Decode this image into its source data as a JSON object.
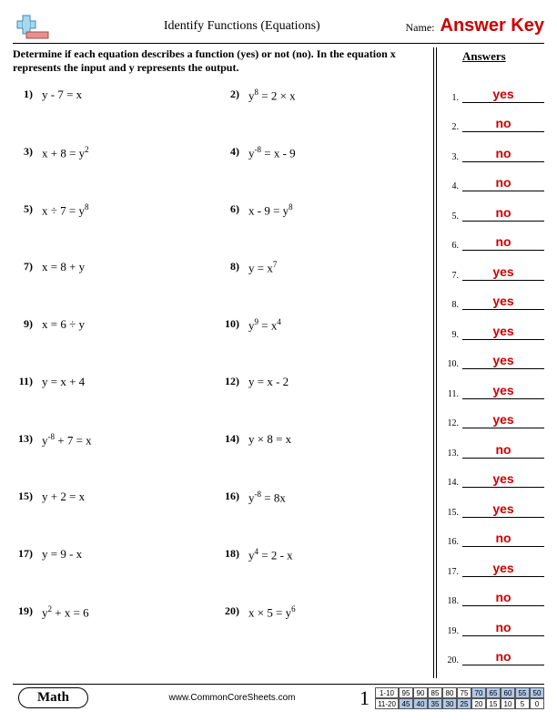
{
  "header": {
    "title": "Identify Functions (Equations)",
    "name_label": "Name:",
    "answer_key": "Answer Key"
  },
  "instructions": "Determine if each equation describes a function (yes) or not (no). In the equation x represents the input and y represents the output.",
  "questions": [
    {
      "n": "1)",
      "html": "y - 7 = x"
    },
    {
      "n": "2)",
      "html": "y<sup>8</sup> = 2 × x"
    },
    {
      "n": "3)",
      "html": "x + 8 = y<sup>2</sup>"
    },
    {
      "n": "4)",
      "html": "y<sup>-8</sup> = x - 9"
    },
    {
      "n": "5)",
      "html": "x ÷ 7 = y<sup>8</sup>"
    },
    {
      "n": "6)",
      "html": "x - 9 = y<sup>8</sup>"
    },
    {
      "n": "7)",
      "html": "x = 8 + y"
    },
    {
      "n": "8)",
      "html": "y = x<sup>7</sup>"
    },
    {
      "n": "9)",
      "html": "x = 6 ÷ y"
    },
    {
      "n": "10)",
      "html": "y<sup>9</sup> = x<sup>4</sup>"
    },
    {
      "n": "11)",
      "html": "y = x + 4"
    },
    {
      "n": "12)",
      "html": "y = x - 2"
    },
    {
      "n": "13)",
      "html": "y<sup>-8</sup> + 7 = x"
    },
    {
      "n": "14)",
      "html": "y × 8 = x"
    },
    {
      "n": "15)",
      "html": "y + 2 = x"
    },
    {
      "n": "16)",
      "html": "y<sup>-8</sup> = 8x"
    },
    {
      "n": "17)",
      "html": "y = 9 - x"
    },
    {
      "n": "18)",
      "html": "y<sup>4</sup> = 2 - x"
    },
    {
      "n": "19)",
      "html": "y<sup>2</sup> + x = 6"
    },
    {
      "n": "20)",
      "html": "x × 5 = y<sup>6</sup>"
    }
  ],
  "answers_title": "Answers",
  "answers": [
    {
      "n": "1.",
      "v": "yes"
    },
    {
      "n": "2.",
      "v": "no"
    },
    {
      "n": "3.",
      "v": "no"
    },
    {
      "n": "4.",
      "v": "no"
    },
    {
      "n": "5.",
      "v": "no"
    },
    {
      "n": "6.",
      "v": "no"
    },
    {
      "n": "7.",
      "v": "yes"
    },
    {
      "n": "8.",
      "v": "yes"
    },
    {
      "n": "9.",
      "v": "yes"
    },
    {
      "n": "10.",
      "v": "yes"
    },
    {
      "n": "11.",
      "v": "yes"
    },
    {
      "n": "12.",
      "v": "yes"
    },
    {
      "n": "13.",
      "v": "no"
    },
    {
      "n": "14.",
      "v": "yes"
    },
    {
      "n": "15.",
      "v": "yes"
    },
    {
      "n": "16.",
      "v": "no"
    },
    {
      "n": "17.",
      "v": "yes"
    },
    {
      "n": "18.",
      "v": "no"
    },
    {
      "n": "19.",
      "v": "no"
    },
    {
      "n": "20.",
      "v": "no"
    }
  ],
  "footer": {
    "subject": "Math",
    "site": "www.CommonCoreSheets.com",
    "page": "1",
    "score": {
      "row1_label": "1-10",
      "row1": [
        "95",
        "90",
        "85",
        "80",
        "75",
        "70",
        "65",
        "60",
        "55",
        "50"
      ],
      "row1_hl": [
        false,
        false,
        false,
        false,
        false,
        true,
        true,
        true,
        true,
        true
      ],
      "row2_label": "11-20",
      "row2": [
        "45",
        "40",
        "35",
        "30",
        "25",
        "20",
        "15",
        "10",
        "5",
        "0"
      ],
      "row2_hl": [
        true,
        true,
        true,
        true,
        true,
        false,
        false,
        false,
        false,
        false
      ]
    }
  },
  "colors": {
    "answer_red": "#cc0000",
    "score_highlight": "#b0c8e8"
  }
}
